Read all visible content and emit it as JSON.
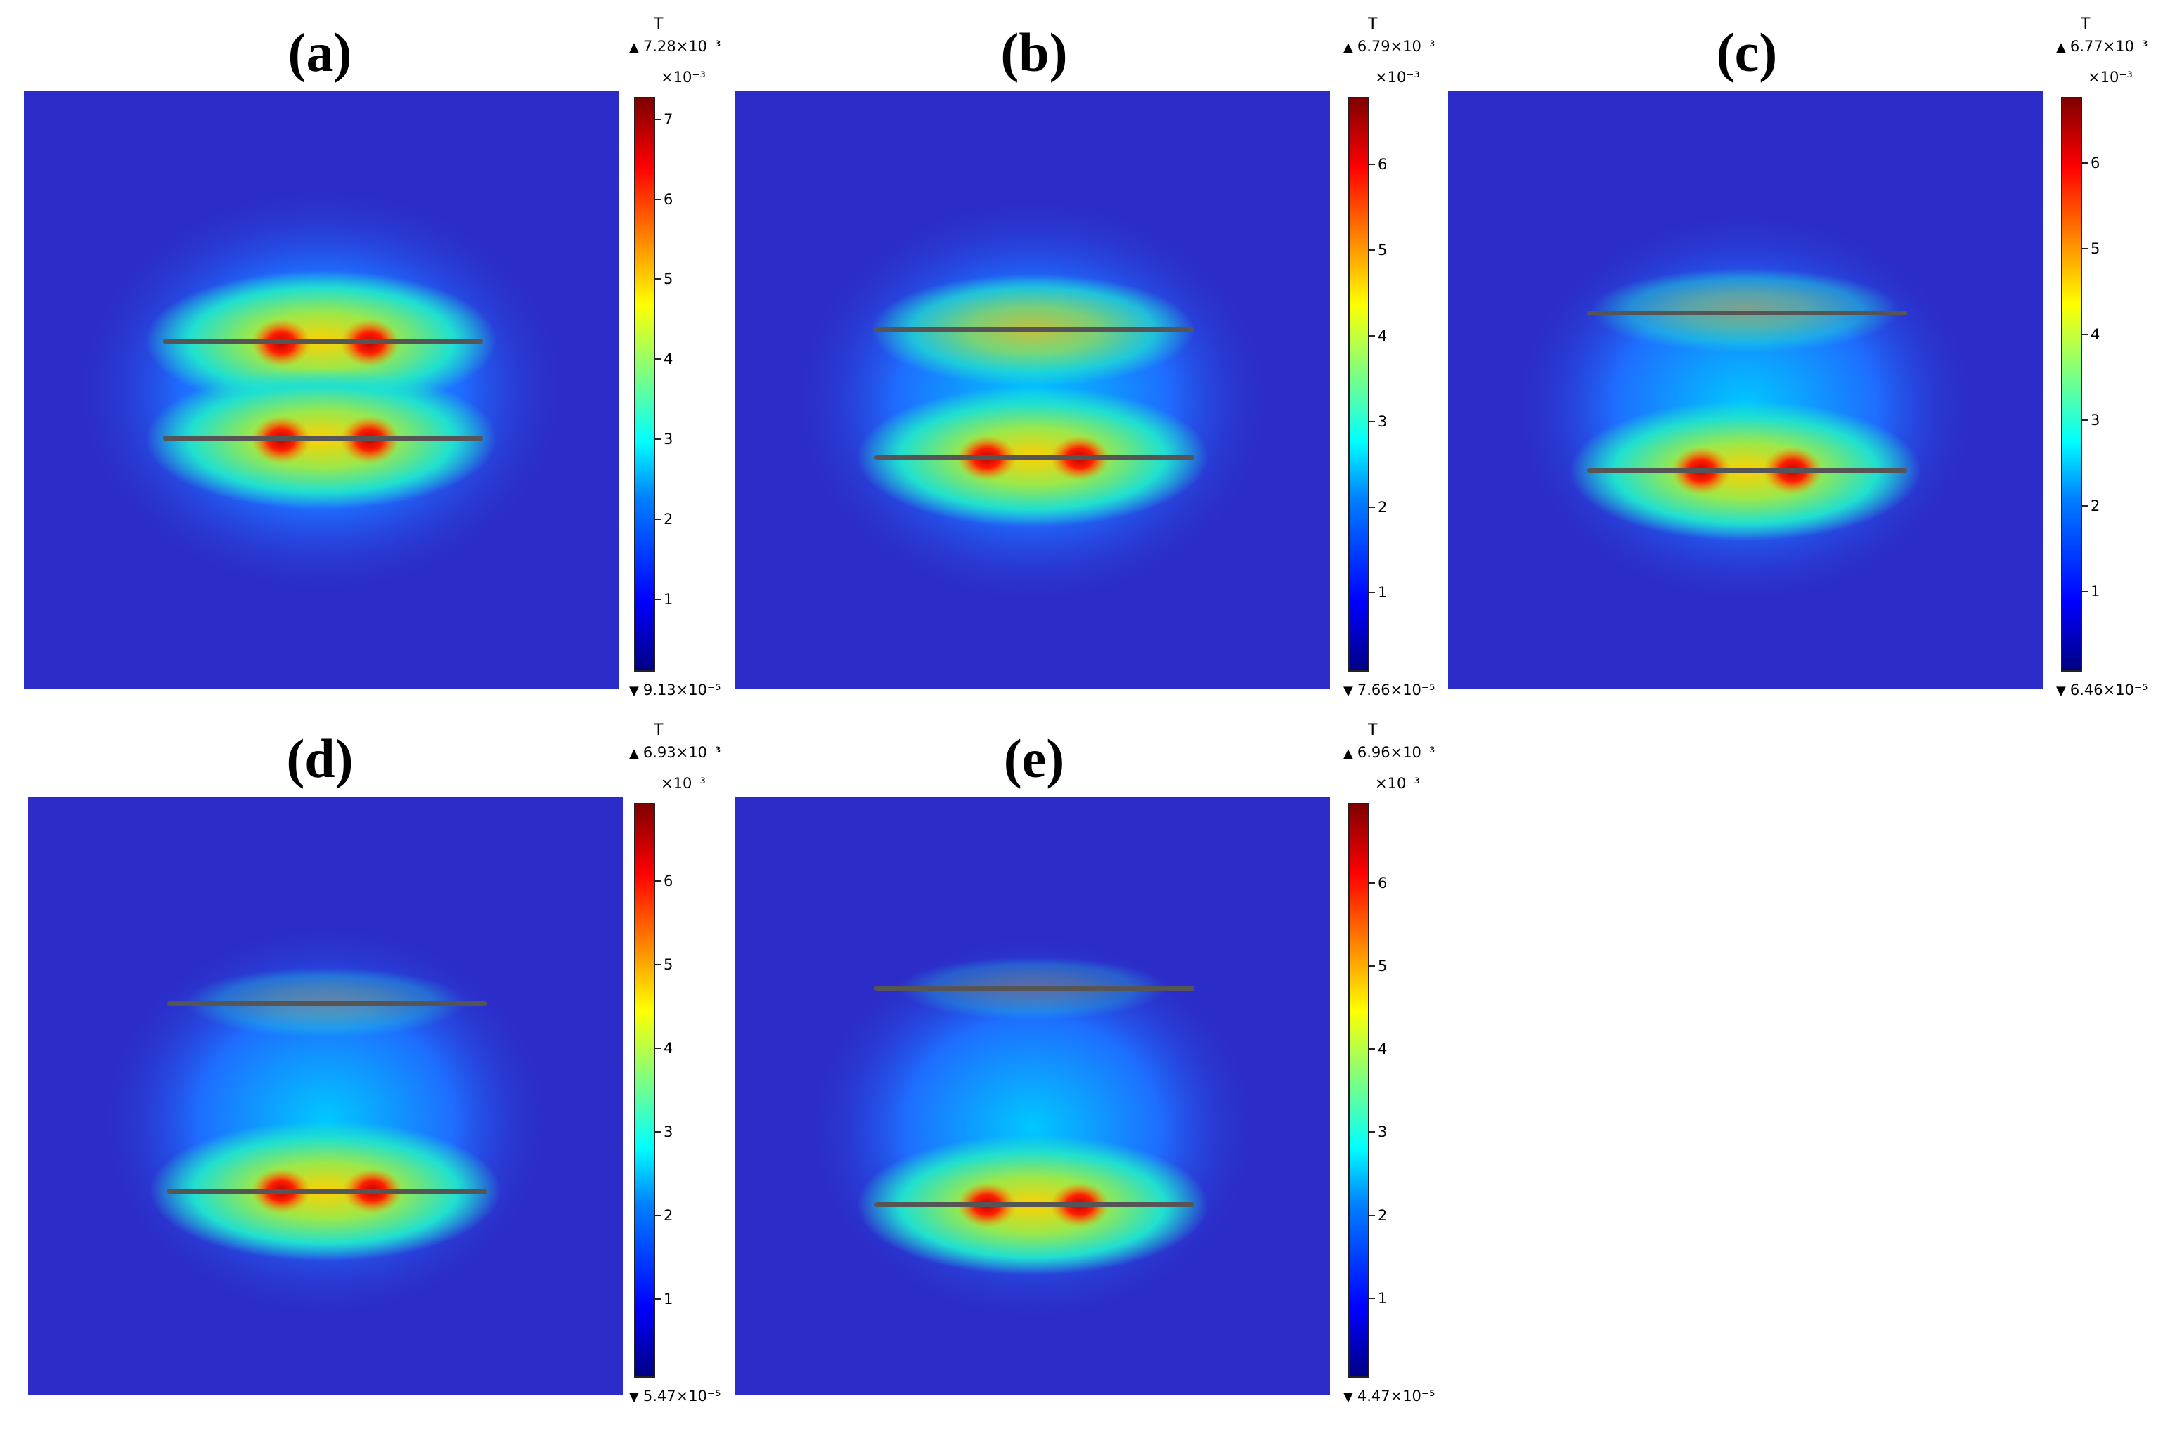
{
  "unit_label": "T",
  "scale_label": "×10⁻³",
  "colormap": [
    "#000083",
    "#0000ff",
    "#007fff",
    "#00ffff",
    "#7fff7f",
    "#ffff00",
    "#ff7f00",
    "#ff0000",
    "#7f0000"
  ],
  "icons": {
    "max_marker": "up-triangle-icon",
    "min_marker": "down-triangle-icon"
  },
  "panels": [
    {
      "id": "a",
      "label": "(a)",
      "max": "7.28×10⁻³",
      "min": "9.13×10⁻⁵",
      "ticks": [
        "1",
        "2",
        "3",
        "4",
        "5",
        "6",
        "7"
      ],
      "range_max": 7.28,
      "range_min": 0.0913,
      "conductor_offset": "equal"
    },
    {
      "id": "b",
      "label": "(b)",
      "max": "6.79×10⁻³",
      "min": "7.66×10⁻⁵",
      "ticks": [
        "1",
        "2",
        "3",
        "4",
        "5",
        "6"
      ],
      "range_max": 6.79,
      "range_min": 0.0766,
      "conductor_offset": "lower-stronger"
    },
    {
      "id": "c",
      "label": "(c)",
      "max": "6.77×10⁻³",
      "min": "6.46×10⁻⁵",
      "ticks": [
        "1",
        "2",
        "3",
        "4",
        "5",
        "6"
      ],
      "range_max": 6.77,
      "range_min": 0.0646,
      "conductor_offset": "lower-stronger"
    },
    {
      "id": "d",
      "label": "(d)",
      "max": "6.93×10⁻³",
      "min": "5.47×10⁻⁵",
      "ticks": [
        "1",
        "2",
        "3",
        "4",
        "5",
        "6"
      ],
      "range_max": 6.93,
      "range_min": 0.0547,
      "conductor_offset": "lower-stronger"
    },
    {
      "id": "e",
      "label": "(e)",
      "max": "6.96×10⁻³",
      "min": "4.47×10⁻⁵",
      "ticks": [
        "1",
        "2",
        "3",
        "4",
        "5",
        "6"
      ],
      "range_max": 6.96,
      "range_min": 0.0447,
      "conductor_offset": "lower-stronger"
    }
  ]
}
